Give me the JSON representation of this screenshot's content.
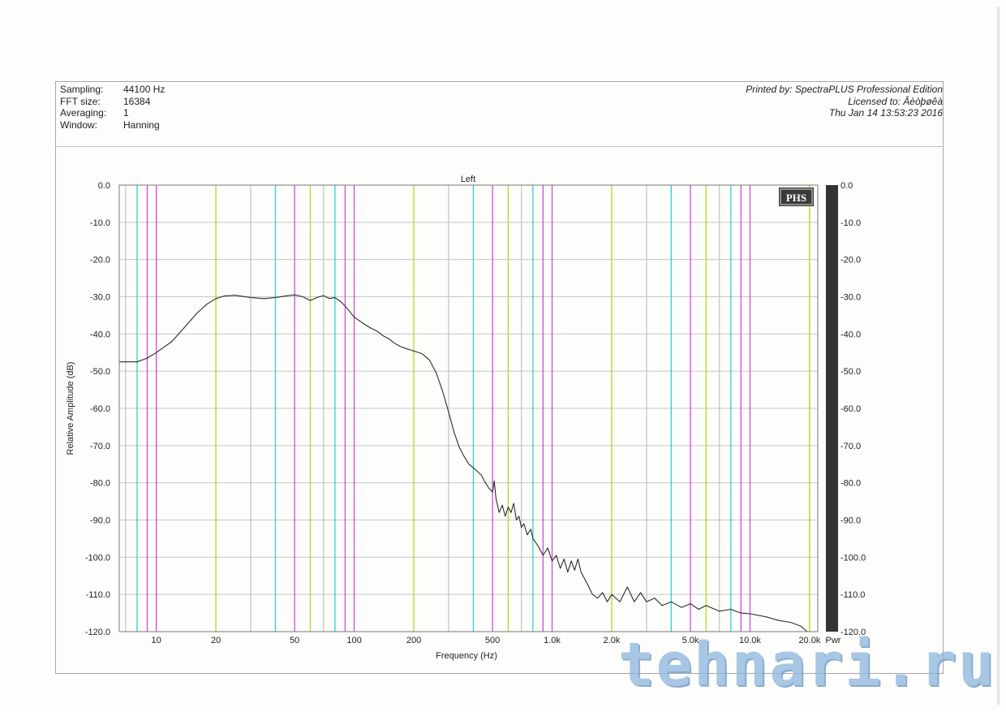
{
  "header": {
    "left": [
      {
        "key": "Sampling:",
        "value": "44100 Hz"
      },
      {
        "key": "FFT size:",
        "value": "16384"
      },
      {
        "key": "Averaging:",
        "value": "1"
      },
      {
        "key": "Window:",
        "value": "Hanning"
      }
    ],
    "right": [
      "Printed by: SpectraPLUS Professional Edition",
      "Licensed to: Âèòþøêà",
      "Thu Jan 14 13:53:23 2016"
    ]
  },
  "logo": "PHS",
  "watermark": "tehnari.ru",
  "colors": {
    "trace": "#2b2b2b",
    "grid_major": "#c6c6c6",
    "grid_lines": [
      "#2ad3d3",
      "#d34ad8",
      "#b7d625",
      "#c6c6c6"
    ],
    "pwr_bar": "#333333"
  },
  "chart_data": {
    "type": "line",
    "title": "Left",
    "xlabel": "Frequency (Hz)",
    "ylabel": "Relative Amplitude (dB)",
    "xscale": "log",
    "xlim": [
      6.5,
      22000
    ],
    "ylim": [
      -120,
      0
    ],
    "x_ticks": [
      {
        "value": 10,
        "label": "10"
      },
      {
        "value": 20,
        "label": "20"
      },
      {
        "value": 50,
        "label": "50"
      },
      {
        "value": 100,
        "label": "100"
      },
      {
        "value": 200,
        "label": "200"
      },
      {
        "value": 500,
        "label": "500"
      },
      {
        "value": 1000,
        "label": "1.0k"
      },
      {
        "value": 2000,
        "label": "2.0k"
      },
      {
        "value": 5000,
        "label": "5.0k"
      },
      {
        "value": 10000,
        "label": "10.0k"
      },
      {
        "value": 20000,
        "label": "20.0k"
      }
    ],
    "y_ticks": [
      "0.0",
      "-10.0",
      "-20.0",
      "-30.0",
      "-40.0",
      "-50.0",
      "-60.0",
      "-70.0",
      "-80.0",
      "-90.0",
      "-100.0",
      "-110.0",
      "-120.0"
    ],
    "right_y_ticks": [
      "0.0",
      "-10.0",
      "-20.0",
      "-30.0",
      "-40.0",
      "-50.0",
      "-60.0",
      "-70.0",
      "-80.0",
      "-90.0",
      "-100.0",
      "-110.0",
      "-120.0"
    ],
    "pwr_label": "Pwr",
    "grid": true,
    "series": [
      {
        "points": [
          [
            6.5,
            -47.5
          ],
          [
            8,
            -47.5
          ],
          [
            9,
            -46.5
          ],
          [
            10,
            -45
          ],
          [
            12,
            -42
          ],
          [
            14,
            -38
          ],
          [
            16,
            -34.5
          ],
          [
            18,
            -32
          ],
          [
            20,
            -30.5
          ],
          [
            22,
            -29.8
          ],
          [
            25,
            -29.6
          ],
          [
            30,
            -30.2
          ],
          [
            35,
            -30.5
          ],
          [
            40,
            -30.2
          ],
          [
            45,
            -29.8
          ],
          [
            50,
            -29.5
          ],
          [
            55,
            -30
          ],
          [
            60,
            -31
          ],
          [
            65,
            -30.2
          ],
          [
            70,
            -29.7
          ],
          [
            75,
            -30.5
          ],
          [
            80,
            -30.2
          ],
          [
            85,
            -31.2
          ],
          [
            90,
            -32.5
          ],
          [
            95,
            -34
          ],
          [
            100,
            -35.5
          ],
          [
            110,
            -37
          ],
          [
            120,
            -38.3
          ],
          [
            130,
            -39.2
          ],
          [
            140,
            -40.5
          ],
          [
            150,
            -41.3
          ],
          [
            160,
            -42.5
          ],
          [
            170,
            -43.3
          ],
          [
            180,
            -43.8
          ],
          [
            190,
            -44.2
          ],
          [
            200,
            -44.6
          ],
          [
            220,
            -45.3
          ],
          [
            240,
            -47
          ],
          [
            260,
            -50.5
          ],
          [
            280,
            -55.5
          ],
          [
            300,
            -61
          ],
          [
            320,
            -66.5
          ],
          [
            340,
            -70.5
          ],
          [
            360,
            -73
          ],
          [
            380,
            -75
          ],
          [
            400,
            -76
          ],
          [
            420,
            -77
          ],
          [
            440,
            -78
          ],
          [
            460,
            -80
          ],
          [
            480,
            -81.5
          ],
          [
            500,
            -82.5
          ],
          [
            510,
            -79.5
          ],
          [
            520,
            -84
          ],
          [
            540,
            -88
          ],
          [
            560,
            -86
          ],
          [
            580,
            -89
          ],
          [
            600,
            -86.5
          ],
          [
            620,
            -88
          ],
          [
            640,
            -85.5
          ],
          [
            660,
            -90
          ],
          [
            680,
            -89
          ],
          [
            700,
            -92
          ],
          [
            720,
            -91
          ],
          [
            750,
            -94
          ],
          [
            780,
            -92.5
          ],
          [
            800,
            -95
          ],
          [
            850,
            -97
          ],
          [
            900,
            -99.5
          ],
          [
            950,
            -97.5
          ],
          [
            1000,
            -101
          ],
          [
            1050,
            -99.5
          ],
          [
            1100,
            -103
          ],
          [
            1150,
            -100.5
          ],
          [
            1200,
            -104
          ],
          [
            1250,
            -101
          ],
          [
            1300,
            -103.5
          ],
          [
            1350,
            -100.5
          ],
          [
            1400,
            -104
          ],
          [
            1500,
            -107
          ],
          [
            1600,
            -110
          ],
          [
            1700,
            -111
          ],
          [
            1800,
            -109.5
          ],
          [
            1900,
            -112
          ],
          [
            2000,
            -110
          ],
          [
            2200,
            -112
          ],
          [
            2400,
            -108
          ],
          [
            2600,
            -112
          ],
          [
            2800,
            -109.5
          ],
          [
            3000,
            -112
          ],
          [
            3300,
            -111
          ],
          [
            3600,
            -113
          ],
          [
            4000,
            -112
          ],
          [
            4500,
            -113.5
          ],
          [
            5000,
            -112.5
          ],
          [
            5500,
            -114
          ],
          [
            6000,
            -113
          ],
          [
            7000,
            -114.5
          ],
          [
            8000,
            -114
          ],
          [
            9000,
            -115
          ],
          [
            10000,
            -115.2
          ],
          [
            12000,
            -116
          ],
          [
            14000,
            -117
          ],
          [
            16000,
            -117.5
          ],
          [
            18000,
            -118.5
          ],
          [
            19500,
            -120
          ]
        ]
      }
    ]
  }
}
